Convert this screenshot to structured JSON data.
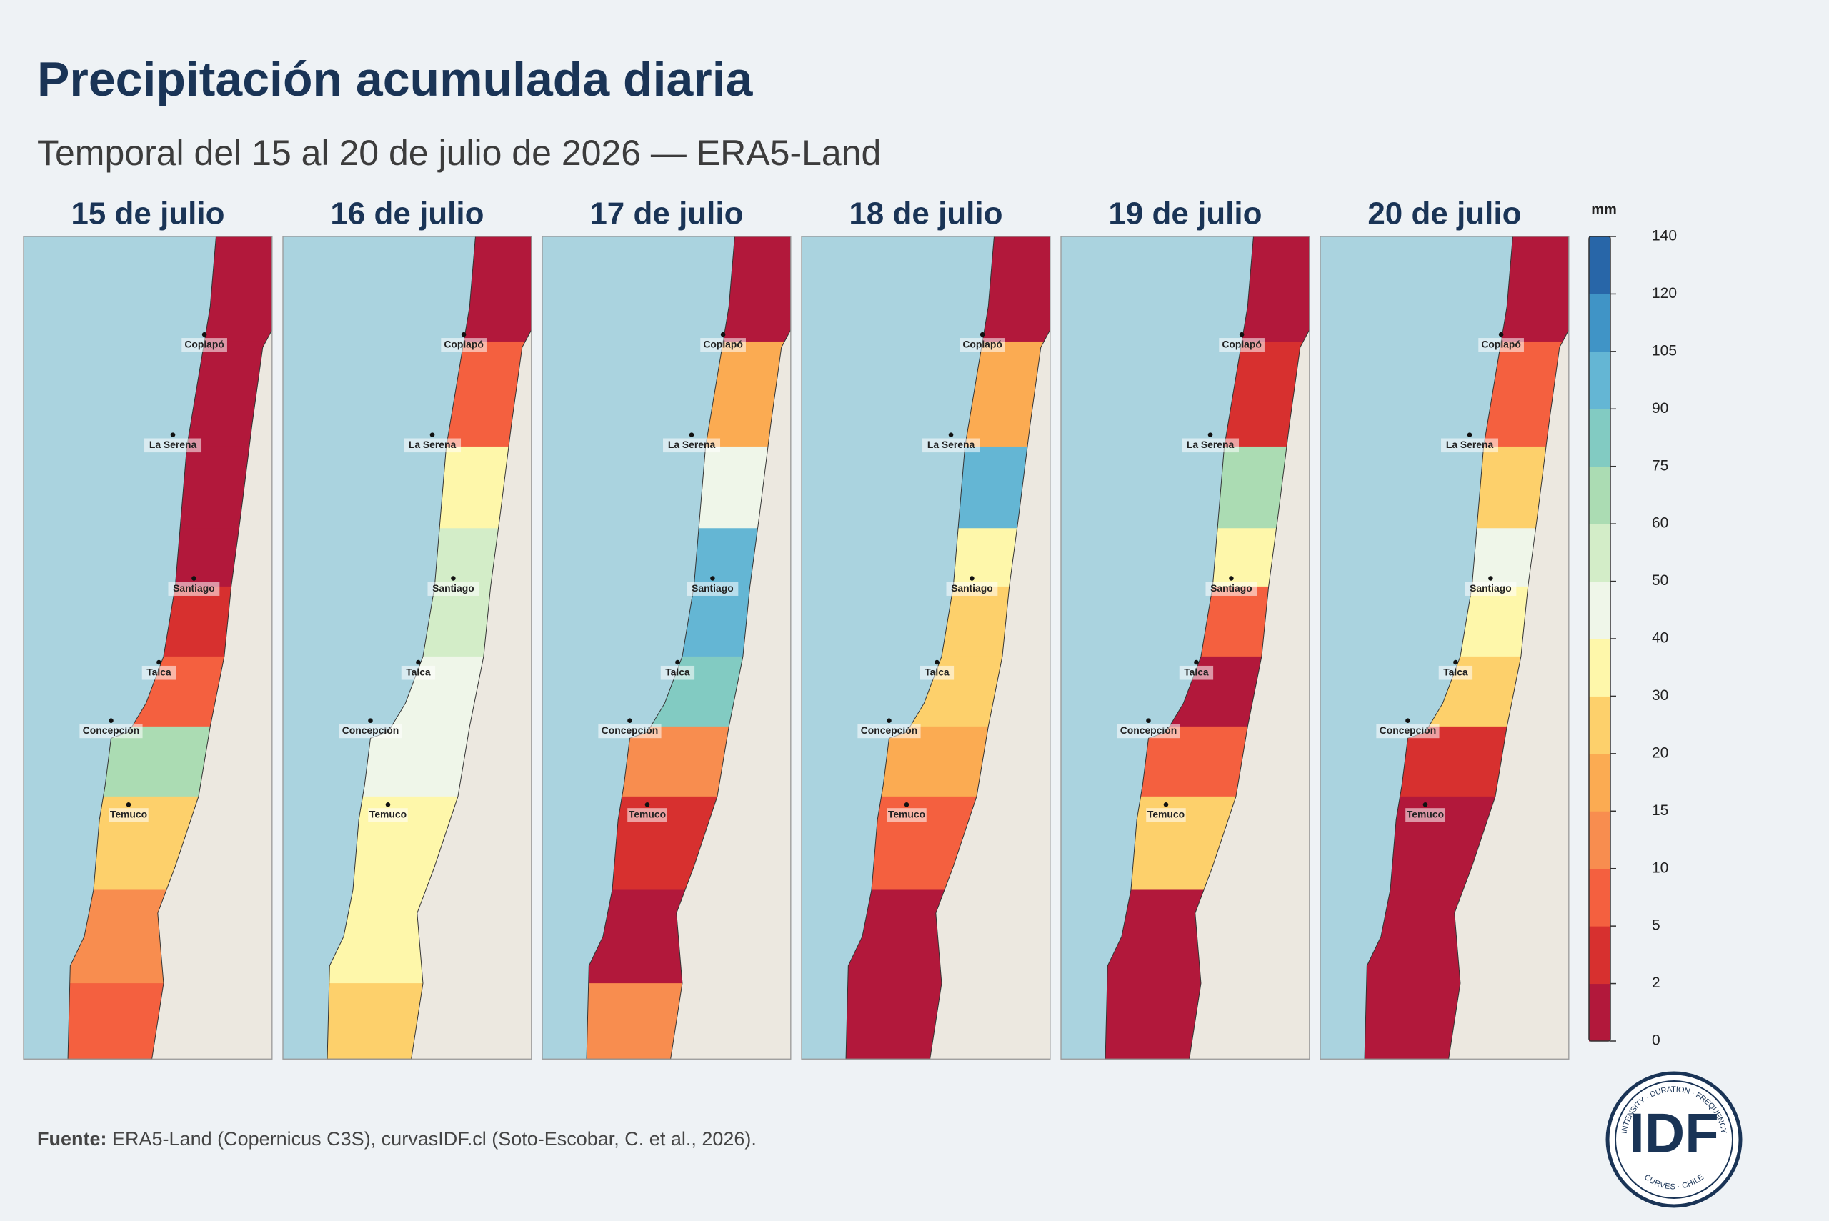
{
  "header": {
    "title": "Precipitación acumulada diaria",
    "subtitle": "Temporal del 15 al 20 de julio de 2026 — ERA5-Land"
  },
  "cities": [
    "Copiapó",
    "La Serena",
    "Santiago",
    "Talca",
    "Concepción",
    "Temuco"
  ],
  "panels": [
    {
      "title": "15 de julio",
      "zones": [
        0,
        0,
        0,
        1,
        4,
        8,
        60,
        25,
        12,
        8
      ]
    },
    {
      "title": "16 de julio",
      "zones": [
        0,
        8,
        30,
        50,
        50,
        45,
        45,
        35,
        30,
        25
      ]
    },
    {
      "title": "17 de julio",
      "zones": [
        0,
        15,
        40,
        100,
        100,
        75,
        12,
        3,
        1,
        12
      ]
    },
    {
      "title": "18 de julio",
      "zones": [
        0,
        15,
        90,
        35,
        25,
        20,
        15,
        8,
        1,
        0
      ]
    },
    {
      "title": "19 de julio",
      "zones": [
        0,
        2,
        65,
        35,
        5,
        1,
        8,
        20,
        1,
        0
      ]
    },
    {
      "title": "20 de julio",
      "zones": [
        0,
        8,
        25,
        40,
        35,
        20,
        3,
        0,
        0,
        0
      ]
    }
  ],
  "colorbar": {
    "unit": "mm",
    "ticks": [
      0,
      2,
      5,
      10,
      15,
      20,
      30,
      40,
      50,
      60,
      75,
      90,
      105,
      120,
      140
    ],
    "colors": [
      "#b2183b",
      "#d7302f",
      "#f4603f",
      "#f88d4f",
      "#fbab52",
      "#fdd06b",
      "#fef7aa",
      "#eff6e9",
      "#d3edc8",
      "#abdcb3",
      "#82cbc2",
      "#64b6d4",
      "#4094c6",
      "#2866a8"
    ]
  },
  "source": {
    "label": "Fuente:",
    "text": "ERA5-Land (Copernicus C3S), curvasIDF.cl (Soto-Escobar, C. et al., 2026)."
  },
  "logo": {
    "mark": "IDF",
    "top": "INTENSITY · DURATION · FREQUENCY",
    "bottom": "CURVES · CHILE"
  }
}
